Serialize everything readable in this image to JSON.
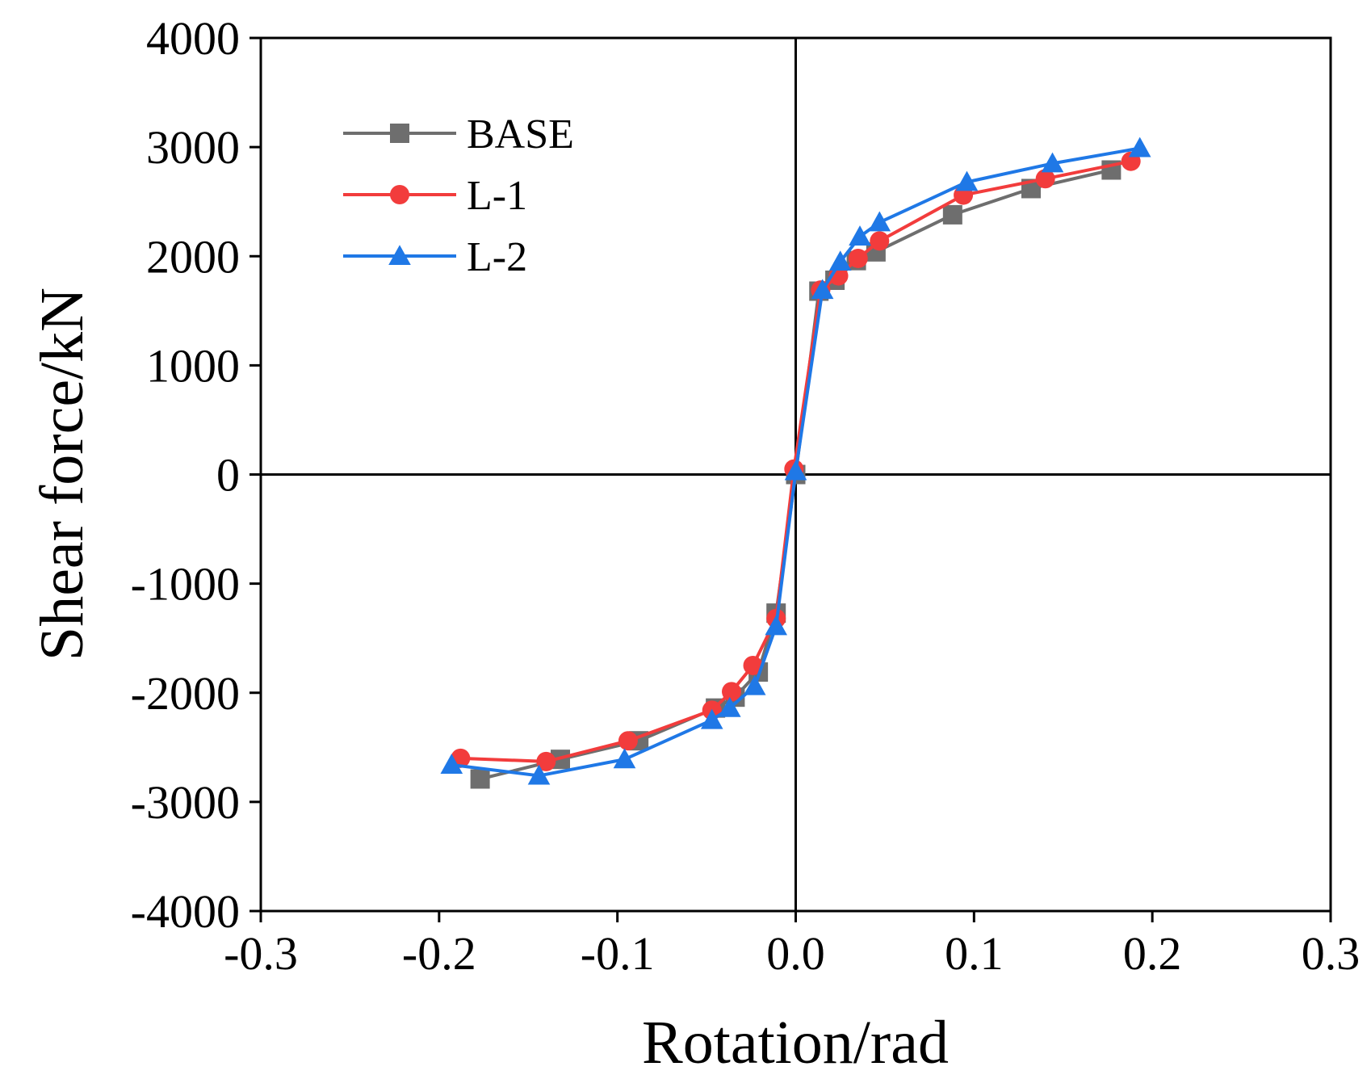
{
  "chart_data": {
    "type": "line",
    "title": "",
    "xlabel": "Rotation/rad",
    "ylabel": "Shear force/kN",
    "xlim": [
      -0.3,
      0.3
    ],
    "ylim": [
      -4000,
      4000
    ],
    "xticks": [
      -0.3,
      -0.2,
      -0.1,
      0.0,
      0.1,
      0.2,
      0.3
    ],
    "xtick_labels": [
      "-0.3",
      "-0.2",
      "-0.1",
      "0.0",
      "0.1",
      "0.2",
      "0.3"
    ],
    "yticks": [
      -4000,
      -3000,
      -2000,
      -1000,
      0,
      1000,
      2000,
      3000,
      4000
    ],
    "ytick_labels": [
      "-4000",
      "-3000",
      "-2000",
      "-1000",
      "0",
      "1000",
      "2000",
      "3000",
      "4000"
    ],
    "grid": false,
    "zero_lines": true,
    "legend_position": "top-left",
    "series": [
      {
        "name": "BASE",
        "color": "#6e6e6e",
        "marker": "square",
        "x": [
          -0.177,
          -0.132,
          -0.088,
          -0.045,
          -0.034,
          -0.021,
          -0.011,
          0.0,
          0.013,
          0.022,
          0.034,
          0.045,
          0.088,
          0.132,
          0.177
        ],
        "y": [
          -2790,
          -2610,
          -2440,
          -2140,
          -2040,
          -1810,
          -1270,
          0,
          1680,
          1780,
          1960,
          2040,
          2380,
          2620,
          2790
        ]
      },
      {
        "name": "L-1",
        "color": "#f23c3c",
        "marker": "circle",
        "x": [
          -0.188,
          -0.14,
          -0.094,
          -0.047,
          -0.036,
          -0.024,
          -0.011,
          -0.001,
          0.014,
          0.024,
          0.035,
          0.047,
          0.094,
          0.14,
          0.188
        ],
        "y": [
          -2600,
          -2630,
          -2440,
          -2160,
          -1990,
          -1750,
          -1320,
          50,
          1690,
          1820,
          1980,
          2140,
          2560,
          2710,
          2870
        ]
      },
      {
        "name": "L-2",
        "color": "#1f78e6",
        "marker": "triangle",
        "x": [
          -0.193,
          -0.144,
          -0.096,
          -0.047,
          -0.037,
          -0.023,
          -0.011,
          0.0,
          0.015,
          0.025,
          0.036,
          0.047,
          0.096,
          0.144,
          0.193
        ],
        "y": [
          -2660,
          -2760,
          -2610,
          -2250,
          -2140,
          -1940,
          -1390,
          30,
          1690,
          1950,
          2180,
          2310,
          2680,
          2850,
          2990
        ]
      }
    ]
  }
}
